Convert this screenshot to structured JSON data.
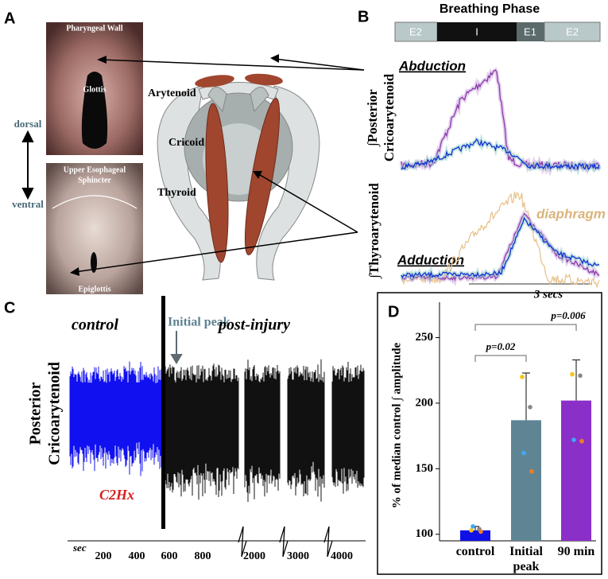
{
  "panels": {
    "A": {
      "letter": "A",
      "pharyngeal_wall": "Pharyngeal Wall",
      "glottis": "Glottis",
      "dorsal": "dorsal",
      "ventral": "ventral",
      "ues": [
        "Upper  Esophageal",
        "Sphincter"
      ],
      "epiglottis": "Epiglottis",
      "arytenoid": "Arytenoid",
      "cricoid": "Cricoid",
      "thyroid": "Thyroid"
    },
    "B": {
      "letter": "B",
      "title": "Breathing Phase",
      "phases": [
        "E2",
        "I",
        "E1",
        "E2"
      ],
      "abduction": "Abduction",
      "pca_label": [
        "∫Posterior",
        "Cricoarytenoid"
      ],
      "diaphragm": "diaphragm",
      "ta_label": "∫Thyroarytenoid",
      "adduction": "Adduction",
      "scale": "3 secs"
    },
    "C": {
      "letter": "C",
      "control": "control",
      "initial_peak": "Initial peak",
      "post_injury": "post-injury",
      "ylabel": [
        "Posterior",
        "Cricoarytenoid"
      ],
      "injury": "C2Hx",
      "unit": "sec",
      "xticks": [
        200,
        400,
        600,
        800,
        2000,
        3000,
        4000
      ]
    }
  },
  "chart_data": {
    "type": "bar",
    "letter": "D",
    "ylabel": "% of median control ∫ amplitude",
    "categories": [
      "control",
      "Initial peak",
      "90 min"
    ],
    "values": [
      103,
      187,
      202
    ],
    "errors": [
      3,
      36,
      31
    ],
    "colors": [
      "#1010e8",
      "#5f8595",
      "#8b2fc9"
    ],
    "points": [
      [
        103,
        104,
        106,
        102
      ],
      [
        220,
        197,
        162,
        148
      ],
      [
        222,
        221,
        172,
        171
      ]
    ],
    "point_colors": [
      "#f5c518",
      "#888888",
      "#3fa9f5",
      "#f07d28"
    ],
    "ylim": [
      95,
      277
    ],
    "yticks": [
      100,
      150,
      200,
      250
    ],
    "annotations": [
      "p=0.02",
      "p=0.006"
    ]
  }
}
